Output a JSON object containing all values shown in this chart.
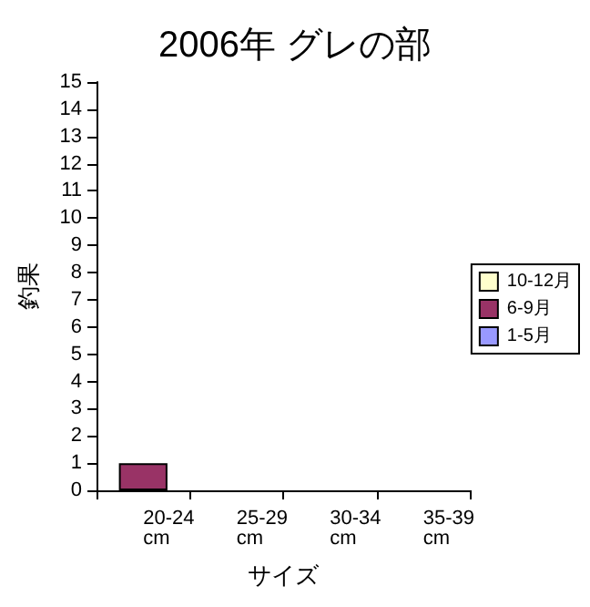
{
  "chart_data": {
    "type": "bar",
    "title": "2006年 グレの部",
    "xlabel": "サイズ",
    "ylabel": "釣果",
    "categories": [
      "20-24 cm",
      "25-29 cm",
      "30-34 cm",
      "35-39 cm"
    ],
    "stacked": true,
    "series": [
      {
        "name": "1-5月",
        "color": "#9999ff",
        "values": [
          0,
          0,
          0,
          0
        ]
      },
      {
        "name": "6-9月",
        "color": "#993366",
        "values": [
          1,
          0,
          0,
          0
        ]
      },
      {
        "name": "10-12月",
        "color": "#ffffcc",
        "values": [
          0,
          0,
          0,
          0
        ]
      }
    ],
    "ylim": [
      0,
      15
    ],
    "yticks": [
      0,
      1,
      2,
      3,
      4,
      5,
      6,
      7,
      8,
      9,
      10,
      11,
      12,
      13,
      14,
      15
    ],
    "grid": false,
    "legend": "right"
  }
}
